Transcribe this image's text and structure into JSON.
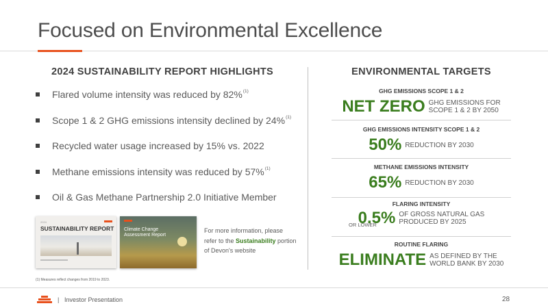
{
  "title": "Focused on Environmental Excellence",
  "colors": {
    "accent": "#e8501c",
    "highlight_green": "#3a7d1e"
  },
  "left": {
    "heading": "2024 SUSTAINABILITY REPORT HIGHLIGHTS",
    "bullets": [
      {
        "text": "Flared volume intensity was reduced by 82%",
        "note": "(1)"
      },
      {
        "text": "Scope 1 & 2 GHG emissions intensity declined by 24%",
        "note": "(1)"
      },
      {
        "text": "Recycled water usage increased by 15% vs. 2022",
        "note": ""
      },
      {
        "text": "Methane emissions intensity was reduced by 57%",
        "note": "(1)"
      },
      {
        "text": "Oil & Gas Methane Partnership 2.0 Initiative Member",
        "note": ""
      }
    ],
    "thumbnails": {
      "report1_title": "SUSTAINABILITY REPORT",
      "report2_title": "Climate Change Assessment Report"
    },
    "more_info": {
      "before": "For more information, please refer to the ",
      "link": "Sustainability",
      "after": " portion of Devon's website"
    },
    "footnote": "(1) Measures reflect changes from 2019 to 2023."
  },
  "right": {
    "heading": "ENVIRONMENTAL TARGETS",
    "targets": [
      {
        "label": "GHG EMISSIONS SCOPE 1 & 2",
        "value": "NET ZERO",
        "desc_line1": "GHG EMISSIONS FOR",
        "desc_line2": "SCOPE 1 & 2 BY 2050"
      },
      {
        "label": "GHG EMISSIONS INTENSITY SCOPE 1 & 2",
        "value": "50%",
        "desc_line1": "REDUCTION BY 2030"
      },
      {
        "label": "METHANE EMISSIONS INTENSITY",
        "value": "65%",
        "desc_line1": "REDUCTION BY 2030"
      },
      {
        "label": "FLARING INTENSITY",
        "value": "0.5%",
        "qualifier": "OR LOWER",
        "desc_line1": "OF GROSS NATURAL GAS",
        "desc_line2": "PRODUCED BY 2025"
      },
      {
        "label": "ROUTINE FLARING",
        "value": "ELIMINATE",
        "desc_line1": "AS DEFINED BY THE",
        "desc_line2": "WORLD BANK BY 2030"
      }
    ]
  },
  "footer": {
    "separator": "|",
    "text": "Investor Presentation",
    "page_number": "28"
  }
}
